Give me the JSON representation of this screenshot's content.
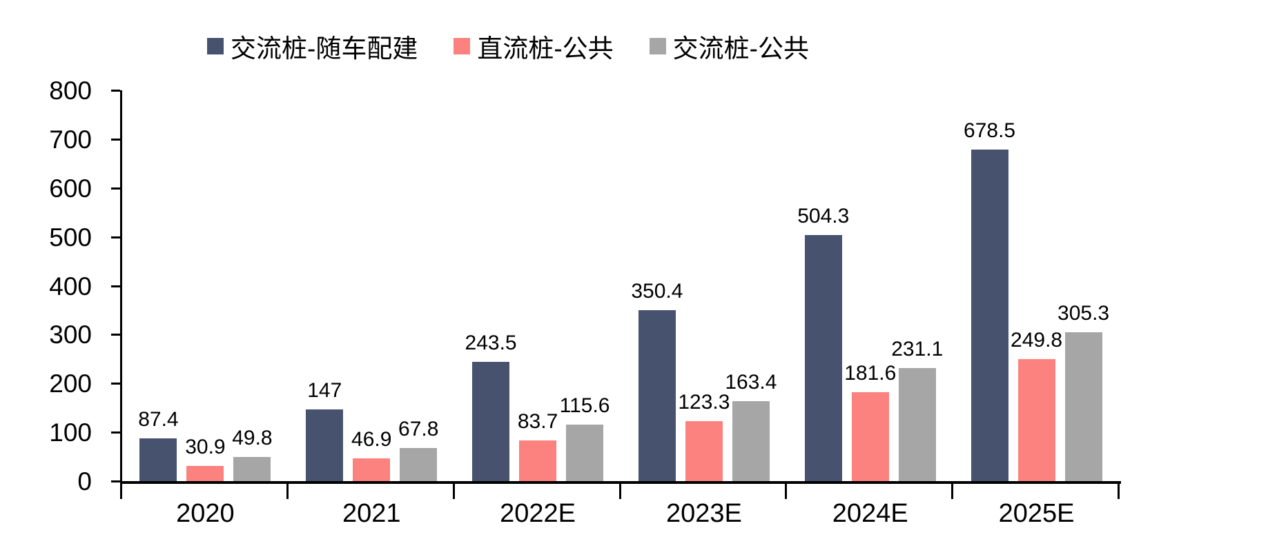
{
  "chart_data": {
    "type": "bar",
    "categories": [
      "2020",
      "2021",
      "2022E",
      "2023E",
      "2024E",
      "2025E"
    ],
    "series": [
      {
        "name": "交流桩-随车配建",
        "color": "#47536E",
        "values": [
          87.4,
          147,
          243.5,
          350.4,
          504.3,
          678.5
        ],
        "labels": [
          "87.4",
          "147",
          "243.5",
          "350.4",
          "504.3",
          "678.5"
        ]
      },
      {
        "name": "直流桩-公共",
        "color": "#FB827E",
        "values": [
          30.9,
          46.9,
          83.7,
          123.3,
          181.6,
          249.8
        ],
        "labels": [
          "30.9",
          "46.9",
          "83.7",
          "123.3",
          "181.6",
          "249.8"
        ]
      },
      {
        "name": "交流桩-公共",
        "color": "#A6A6A6",
        "values": [
          49.8,
          67.8,
          115.6,
          163.4,
          231.1,
          305.3
        ],
        "labels": [
          "49.8",
          "67.8",
          "115.6",
          "163.4",
          "231.1",
          "305.3"
        ]
      }
    ],
    "title": "",
    "xlabel": "",
    "ylabel": "",
    "ylim": [
      0,
      800
    ],
    "ytick_step": 100,
    "ytick_labels": [
      "0",
      "100",
      "200",
      "300",
      "400",
      "500",
      "600",
      "700",
      "800"
    ],
    "grid": false,
    "legend_position": "top",
    "axis_color": "#000000",
    "background_color": "#FFFFFF"
  }
}
